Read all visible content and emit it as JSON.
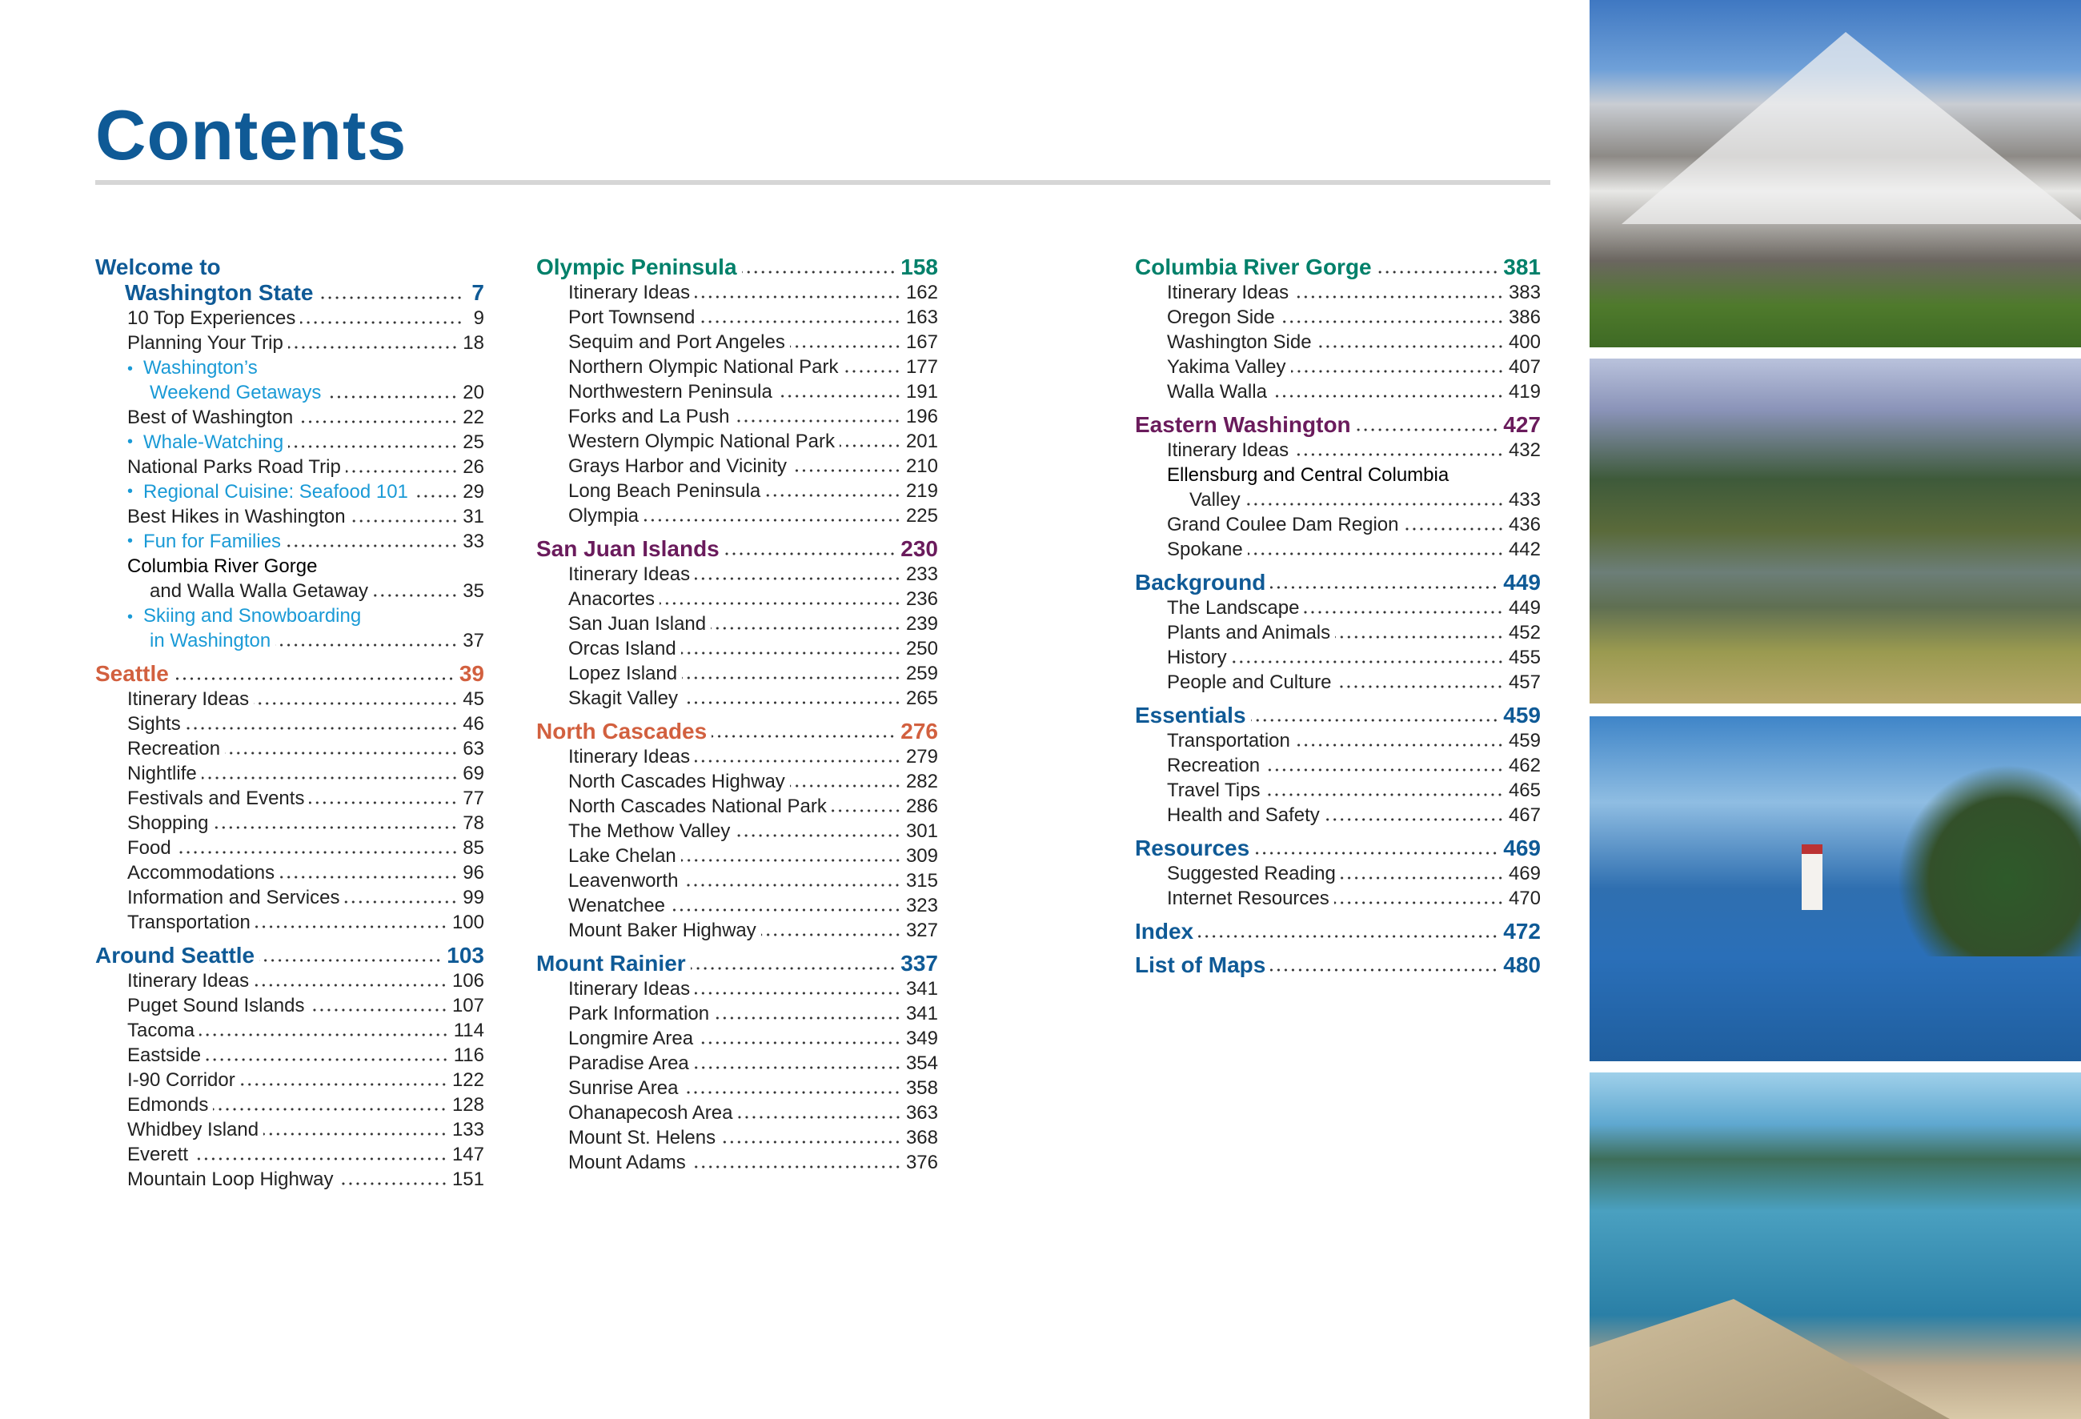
{
  "title": "Contents",
  "colors": {
    "title": "#0f5a96",
    "blue": "#0f5a96",
    "teal": "#00806a",
    "purple": "#6a1b5c",
    "orange": "#d2603f",
    "feature": "#1a9ad6",
    "text": "#222222"
  },
  "columns": [
    {
      "sections": [
        {
          "title": [
            "Welcome to",
            "Washington State"
          ],
          "page": "7",
          "color": "blue",
          "entries": [
            {
              "label": "10 Top Experiences",
              "page": "9"
            },
            {
              "label": "Planning Your Trip",
              "page": "18"
            },
            {
              "label": [
                "Washington’s",
                "Weekend Getaways"
              ],
              "page": "20",
              "feature": true
            },
            {
              "label": "Best of Washington",
              "page": "22"
            },
            {
              "label": "Whale-Watching",
              "page": "25",
              "feature": true
            },
            {
              "label": "National Parks Road Trip",
              "page": "26"
            },
            {
              "label": "Regional Cuisine: Seafood 101",
              "page": "29",
              "feature": true
            },
            {
              "label": "Best Hikes in Washington",
              "page": "31"
            },
            {
              "label": "Fun for Families",
              "page": "33",
              "feature": true
            },
            {
              "label": [
                "Columbia River Gorge",
                "and Walla Walla Getaway"
              ],
              "page": "35"
            },
            {
              "label": [
                "Skiing and Snowboarding",
                "in Washington"
              ],
              "page": "37",
              "feature": true
            }
          ]
        },
        {
          "title": "Seattle",
          "page": "39",
          "color": "orange",
          "entries": [
            {
              "label": "Itinerary Ideas",
              "page": "45"
            },
            {
              "label": "Sights",
              "page": "46"
            },
            {
              "label": "Recreation",
              "page": "63"
            },
            {
              "label": "Nightlife",
              "page": "69"
            },
            {
              "label": "Festivals and Events",
              "page": "77"
            },
            {
              "label": "Shopping",
              "page": "78"
            },
            {
              "label": "Food",
              "page": "85"
            },
            {
              "label": "Accommodations",
              "page": "96"
            },
            {
              "label": "Information and Services",
              "page": "99"
            },
            {
              "label": "Transportation",
              "page": "100"
            }
          ]
        },
        {
          "title": "Around Seattle",
          "page": "103",
          "color": "blue",
          "entries": [
            {
              "label": "Itinerary Ideas",
              "page": "106"
            },
            {
              "label": "Puget Sound Islands",
              "page": "107"
            },
            {
              "label": "Tacoma",
              "page": "114"
            },
            {
              "label": "Eastside",
              "page": "116"
            },
            {
              "label": "I-90 Corridor",
              "page": "122"
            },
            {
              "label": "Edmonds",
              "page": "128"
            },
            {
              "label": "Whidbey Island",
              "page": "133"
            },
            {
              "label": "Everett",
              "page": "147"
            },
            {
              "label": "Mountain Loop Highway",
              "page": "151"
            }
          ]
        }
      ]
    },
    {
      "sections": [
        {
          "title": "Olympic Peninsula",
          "page": "158",
          "color": "teal",
          "entries": [
            {
              "label": "Itinerary Ideas",
              "page": "162"
            },
            {
              "label": "Port Townsend",
              "page": "163"
            },
            {
              "label": "Sequim and Port Angeles",
              "page": "167"
            },
            {
              "label": "Northern Olympic National Park",
              "page": "177"
            },
            {
              "label": "Northwestern Peninsula",
              "page": "191"
            },
            {
              "label": "Forks and La Push",
              "page": "196"
            },
            {
              "label": "Western Olympic National Park",
              "page": "201"
            },
            {
              "label": "Grays Harbor and Vicinity",
              "page": "210"
            },
            {
              "label": "Long Beach Peninsula",
              "page": "219"
            },
            {
              "label": "Olympia",
              "page": "225"
            }
          ]
        },
        {
          "title": "San Juan Islands",
          "page": "230",
          "color": "purple",
          "entries": [
            {
              "label": "Itinerary Ideas",
              "page": "233"
            },
            {
              "label": "Anacortes",
              "page": "236"
            },
            {
              "label": "San Juan Island",
              "page": "239"
            },
            {
              "label": "Orcas Island",
              "page": "250"
            },
            {
              "label": "Lopez Island",
              "page": "259"
            },
            {
              "label": "Skagit Valley",
              "page": "265"
            }
          ]
        },
        {
          "title": "North Cascades",
          "page": "276",
          "color": "orange",
          "entries": [
            {
              "label": "Itinerary Ideas",
              "page": "279"
            },
            {
              "label": "North Cascades Highway",
              "page": "282"
            },
            {
              "label": "North Cascades National Park",
              "page": "286"
            },
            {
              "label": "The Methow Valley",
              "page": "301"
            },
            {
              "label": "Lake Chelan",
              "page": "309"
            },
            {
              "label": "Leavenworth",
              "page": "315"
            },
            {
              "label": "Wenatchee",
              "page": "323"
            },
            {
              "label": "Mount Baker Highway",
              "page": "327"
            }
          ]
        },
        {
          "title": "Mount Rainier",
          "page": "337",
          "color": "blue",
          "entries": [
            {
              "label": "Itinerary Ideas",
              "page": "341"
            },
            {
              "label": "Park Information",
              "page": "341"
            },
            {
              "label": "Longmire Area",
              "page": "349"
            },
            {
              "label": "Paradise Area",
              "page": "354"
            },
            {
              "label": "Sunrise Area",
              "page": "358"
            },
            {
              "label": "Ohanapecosh Area",
              "page": "363"
            },
            {
              "label": "Mount St. Helens",
              "page": "368"
            },
            {
              "label": "Mount Adams",
              "page": "376"
            }
          ]
        }
      ]
    },
    {
      "sections": [
        {
          "title": "Columbia River Gorge",
          "page": "381",
          "color": "teal",
          "entries": [
            {
              "label": "Itinerary Ideas",
              "page": "383"
            },
            {
              "label": "Oregon Side",
              "page": "386"
            },
            {
              "label": "Washington Side",
              "page": "400"
            },
            {
              "label": "Yakima Valley",
              "page": "407"
            },
            {
              "label": "Walla Walla",
              "page": "419"
            }
          ]
        },
        {
          "title": "Eastern Washington",
          "page": "427",
          "color": "purple",
          "entries": [
            {
              "label": "Itinerary Ideas",
              "page": "432"
            },
            {
              "label": [
                "Ellensburg and Central Columbia",
                "Valley"
              ],
              "page": "433"
            },
            {
              "label": "Grand Coulee Dam Region",
              "page": "436"
            },
            {
              "label": "Spokane",
              "page": "442"
            }
          ]
        },
        {
          "title": "Background",
          "page": "449",
          "color": "blue",
          "entries": [
            {
              "label": "The Landscape",
              "page": "449"
            },
            {
              "label": "Plants and Animals",
              "page": "452"
            },
            {
              "label": "History",
              "page": "455"
            },
            {
              "label": "People and Culture",
              "page": "457"
            }
          ]
        },
        {
          "title": "Essentials",
          "page": "459",
          "color": "blue",
          "entries": [
            {
              "label": "Transportation",
              "page": "459"
            },
            {
              "label": "Recreation",
              "page": "462"
            },
            {
              "label": "Travel Tips",
              "page": "465"
            },
            {
              "label": "Health and Safety",
              "page": "467"
            }
          ]
        },
        {
          "title": "Resources",
          "page": "469",
          "color": "blue",
          "entries": [
            {
              "label": "Suggested Reading",
              "page": "469"
            },
            {
              "label": "Internet Resources",
              "page": "470"
            }
          ]
        },
        {
          "title": "Index",
          "page": "472",
          "color": "blue",
          "entries": []
        },
        {
          "title": "List of Maps",
          "page": "480",
          "color": "blue",
          "entries": []
        }
      ]
    }
  ],
  "photos": [
    {
      "icon": "mount-rainier-photo"
    },
    {
      "icon": "river-valley-photo"
    },
    {
      "icon": "lighthouse-photo"
    },
    {
      "icon": "lake-dock-photo"
    }
  ]
}
